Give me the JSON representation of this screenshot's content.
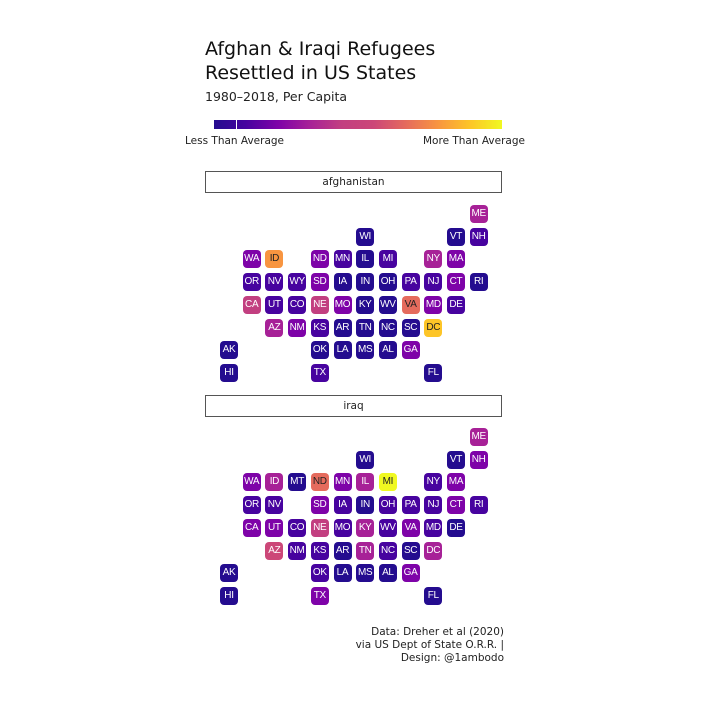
{
  "title_line1": "Afghan & Iraqi Refugees",
  "title_line2": "Resettled in US States",
  "subtitle": "1980–2018, Per Capita",
  "legend": {
    "low_label": "Less Than Average",
    "high_label": "More Than Average"
  },
  "caption": {
    "line1": "Data: Dreher et al (2020)",
    "line2": "via US Dept of State O.R.R. |",
    "line3": "Design: @1ambodo"
  },
  "colors": {
    "p0": "#240c8f",
    "p1": "#47039f",
    "p2": "#7e03a8",
    "p3": "#a72197",
    "p4": "#c23f80",
    "p5": "#cc4778",
    "p6": "#e56b5d",
    "p7": "#f89540",
    "p8": "#fdc527",
    "p9": "#f0f921"
  },
  "chart_data": {
    "type": "heatmap",
    "grid_cols": 12,
    "grid_rows": 8,
    "color_scale": "plasma, low (Less Than Average) to high (More Than Average)",
    "panels": [
      {
        "label": "afghanistan",
        "tiles": [
          {
            "state": "ME",
            "col": 11,
            "row": 0,
            "level": 3
          },
          {
            "state": "WI",
            "col": 6,
            "row": 1,
            "level": 0
          },
          {
            "state": "VT",
            "col": 10,
            "row": 1,
            "level": 0
          },
          {
            "state": "NH",
            "col": 11,
            "row": 1,
            "level": 1
          },
          {
            "state": "WA",
            "col": 1,
            "row": 2,
            "level": 2
          },
          {
            "state": "ID",
            "col": 2,
            "row": 2,
            "level": 7
          },
          {
            "state": "ND",
            "col": 4,
            "row": 2,
            "level": 2
          },
          {
            "state": "MN",
            "col": 5,
            "row": 2,
            "level": 1
          },
          {
            "state": "IL",
            "col": 6,
            "row": 2,
            "level": 0
          },
          {
            "state": "MI",
            "col": 7,
            "row": 2,
            "level": 1
          },
          {
            "state": "NY",
            "col": 9,
            "row": 2,
            "level": 3
          },
          {
            "state": "MA",
            "col": 10,
            "row": 2,
            "level": 2
          },
          {
            "state": "OR",
            "col": 1,
            "row": 3,
            "level": 1
          },
          {
            "state": "NV",
            "col": 2,
            "row": 3,
            "level": 1
          },
          {
            "state": "WY",
            "col": 3,
            "row": 3,
            "level": 1
          },
          {
            "state": "SD",
            "col": 4,
            "row": 3,
            "level": 2
          },
          {
            "state": "IA",
            "col": 5,
            "row": 3,
            "level": 0
          },
          {
            "state": "IN",
            "col": 6,
            "row": 3,
            "level": 0
          },
          {
            "state": "OH",
            "col": 7,
            "row": 3,
            "level": 0
          },
          {
            "state": "PA",
            "col": 8,
            "row": 3,
            "level": 1
          },
          {
            "state": "NJ",
            "col": 9,
            "row": 3,
            "level": 1
          },
          {
            "state": "CT",
            "col": 10,
            "row": 3,
            "level": 2
          },
          {
            "state": "RI",
            "col": 11,
            "row": 3,
            "level": 0
          },
          {
            "state": "CA",
            "col": 1,
            "row": 4,
            "level": 4
          },
          {
            "state": "UT",
            "col": 2,
            "row": 4,
            "level": 1
          },
          {
            "state": "CO",
            "col": 3,
            "row": 4,
            "level": 1
          },
          {
            "state": "NE",
            "col": 4,
            "row": 4,
            "level": 4
          },
          {
            "state": "MO",
            "col": 5,
            "row": 4,
            "level": 2
          },
          {
            "state": "KY",
            "col": 6,
            "row": 4,
            "level": 0
          },
          {
            "state": "WV",
            "col": 7,
            "row": 4,
            "level": 0
          },
          {
            "state": "VA",
            "col": 8,
            "row": 4,
            "level": 6
          },
          {
            "state": "MD",
            "col": 9,
            "row": 4,
            "level": 2
          },
          {
            "state": "DE",
            "col": 10,
            "row": 4,
            "level": 1
          },
          {
            "state": "AZ",
            "col": 2,
            "row": 5,
            "level": 3
          },
          {
            "state": "NM",
            "col": 3,
            "row": 5,
            "level": 2
          },
          {
            "state": "KS",
            "col": 4,
            "row": 5,
            "level": 1
          },
          {
            "state": "AR",
            "col": 5,
            "row": 5,
            "level": 0
          },
          {
            "state": "TN",
            "col": 6,
            "row": 5,
            "level": 0
          },
          {
            "state": "NC",
            "col": 7,
            "row": 5,
            "level": 0
          },
          {
            "state": "SC",
            "col": 8,
            "row": 5,
            "level": 0
          },
          {
            "state": "DC",
            "col": 9,
            "row": 5,
            "level": 8
          },
          {
            "state": "AK",
            "col": 0,
            "row": 6,
            "level": 0
          },
          {
            "state": "OK",
            "col": 4,
            "row": 6,
            "level": 0
          },
          {
            "state": "LA",
            "col": 5,
            "row": 6,
            "level": 0
          },
          {
            "state": "MS",
            "col": 6,
            "row": 6,
            "level": 0
          },
          {
            "state": "AL",
            "col": 7,
            "row": 6,
            "level": 0
          },
          {
            "state": "GA",
            "col": 8,
            "row": 6,
            "level": 2
          },
          {
            "state": "HI",
            "col": 0,
            "row": 7,
            "level": 0
          },
          {
            "state": "TX",
            "col": 4,
            "row": 7,
            "level": 1
          },
          {
            "state": "FL",
            "col": 9,
            "row": 7,
            "level": 0
          }
        ]
      },
      {
        "label": "iraq",
        "tiles": [
          {
            "state": "ME",
            "col": 11,
            "row": 0,
            "level": 3
          },
          {
            "state": "WI",
            "col": 6,
            "row": 1,
            "level": 0
          },
          {
            "state": "VT",
            "col": 10,
            "row": 1,
            "level": 0
          },
          {
            "state": "NH",
            "col": 11,
            "row": 1,
            "level": 2
          },
          {
            "state": "WA",
            "col": 1,
            "row": 2,
            "level": 2
          },
          {
            "state": "ID",
            "col": 2,
            "row": 2,
            "level": 3
          },
          {
            "state": "MT",
            "col": 3,
            "row": 2,
            "level": 0
          },
          {
            "state": "ND",
            "col": 4,
            "row": 2,
            "level": 6
          },
          {
            "state": "MN",
            "col": 5,
            "row": 2,
            "level": 2
          },
          {
            "state": "IL",
            "col": 6,
            "row": 2,
            "level": 3
          },
          {
            "state": "MI",
            "col": 7,
            "row": 2,
            "level": 9
          },
          {
            "state": "NY",
            "col": 9,
            "row": 2,
            "level": 1
          },
          {
            "state": "MA",
            "col": 10,
            "row": 2,
            "level": 2
          },
          {
            "state": "OR",
            "col": 1,
            "row": 3,
            "level": 1
          },
          {
            "state": "NV",
            "col": 2,
            "row": 3,
            "level": 1
          },
          {
            "state": "SD",
            "col": 4,
            "row": 3,
            "level": 2
          },
          {
            "state": "IA",
            "col": 5,
            "row": 3,
            "level": 1
          },
          {
            "state": "IN",
            "col": 6,
            "row": 3,
            "level": 0
          },
          {
            "state": "OH",
            "col": 7,
            "row": 3,
            "level": 1
          },
          {
            "state": "PA",
            "col": 8,
            "row": 3,
            "level": 1
          },
          {
            "state": "NJ",
            "col": 9,
            "row": 3,
            "level": 1
          },
          {
            "state": "CT",
            "col": 10,
            "row": 3,
            "level": 2
          },
          {
            "state": "RI",
            "col": 11,
            "row": 3,
            "level": 1
          },
          {
            "state": "CA",
            "col": 1,
            "row": 4,
            "level": 2
          },
          {
            "state": "UT",
            "col": 2,
            "row": 4,
            "level": 2
          },
          {
            "state": "CO",
            "col": 3,
            "row": 4,
            "level": 1
          },
          {
            "state": "NE",
            "col": 4,
            "row": 4,
            "level": 4
          },
          {
            "state": "MO",
            "col": 5,
            "row": 4,
            "level": 1
          },
          {
            "state": "KY",
            "col": 6,
            "row": 4,
            "level": 3
          },
          {
            "state": "WV",
            "col": 7,
            "row": 4,
            "level": 1
          },
          {
            "state": "VA",
            "col": 8,
            "row": 4,
            "level": 2
          },
          {
            "state": "MD",
            "col": 9,
            "row": 4,
            "level": 1
          },
          {
            "state": "DE",
            "col": 10,
            "row": 4,
            "level": 0
          },
          {
            "state": "AZ",
            "col": 2,
            "row": 5,
            "level": 5
          },
          {
            "state": "NM",
            "col": 3,
            "row": 5,
            "level": 1
          },
          {
            "state": "KS",
            "col": 4,
            "row": 5,
            "level": 1
          },
          {
            "state": "AR",
            "col": 5,
            "row": 5,
            "level": 0
          },
          {
            "state": "TN",
            "col": 6,
            "row": 5,
            "level": 3
          },
          {
            "state": "NC",
            "col": 7,
            "row": 5,
            "level": 1
          },
          {
            "state": "SC",
            "col": 8,
            "row": 5,
            "level": 0
          },
          {
            "state": "DC",
            "col": 9,
            "row": 5,
            "level": 3
          },
          {
            "state": "AK",
            "col": 0,
            "row": 6,
            "level": 0
          },
          {
            "state": "OK",
            "col": 4,
            "row": 6,
            "level": 1
          },
          {
            "state": "LA",
            "col": 5,
            "row": 6,
            "level": 0
          },
          {
            "state": "MS",
            "col": 6,
            "row": 6,
            "level": 0
          },
          {
            "state": "AL",
            "col": 7,
            "row": 6,
            "level": 0
          },
          {
            "state": "GA",
            "col": 8,
            "row": 6,
            "level": 2
          },
          {
            "state": "HI",
            "col": 0,
            "row": 7,
            "level": 0
          },
          {
            "state": "TX",
            "col": 4,
            "row": 7,
            "level": 2
          },
          {
            "state": "FL",
            "col": 9,
            "row": 7,
            "level": 0
          }
        ]
      }
    ]
  }
}
